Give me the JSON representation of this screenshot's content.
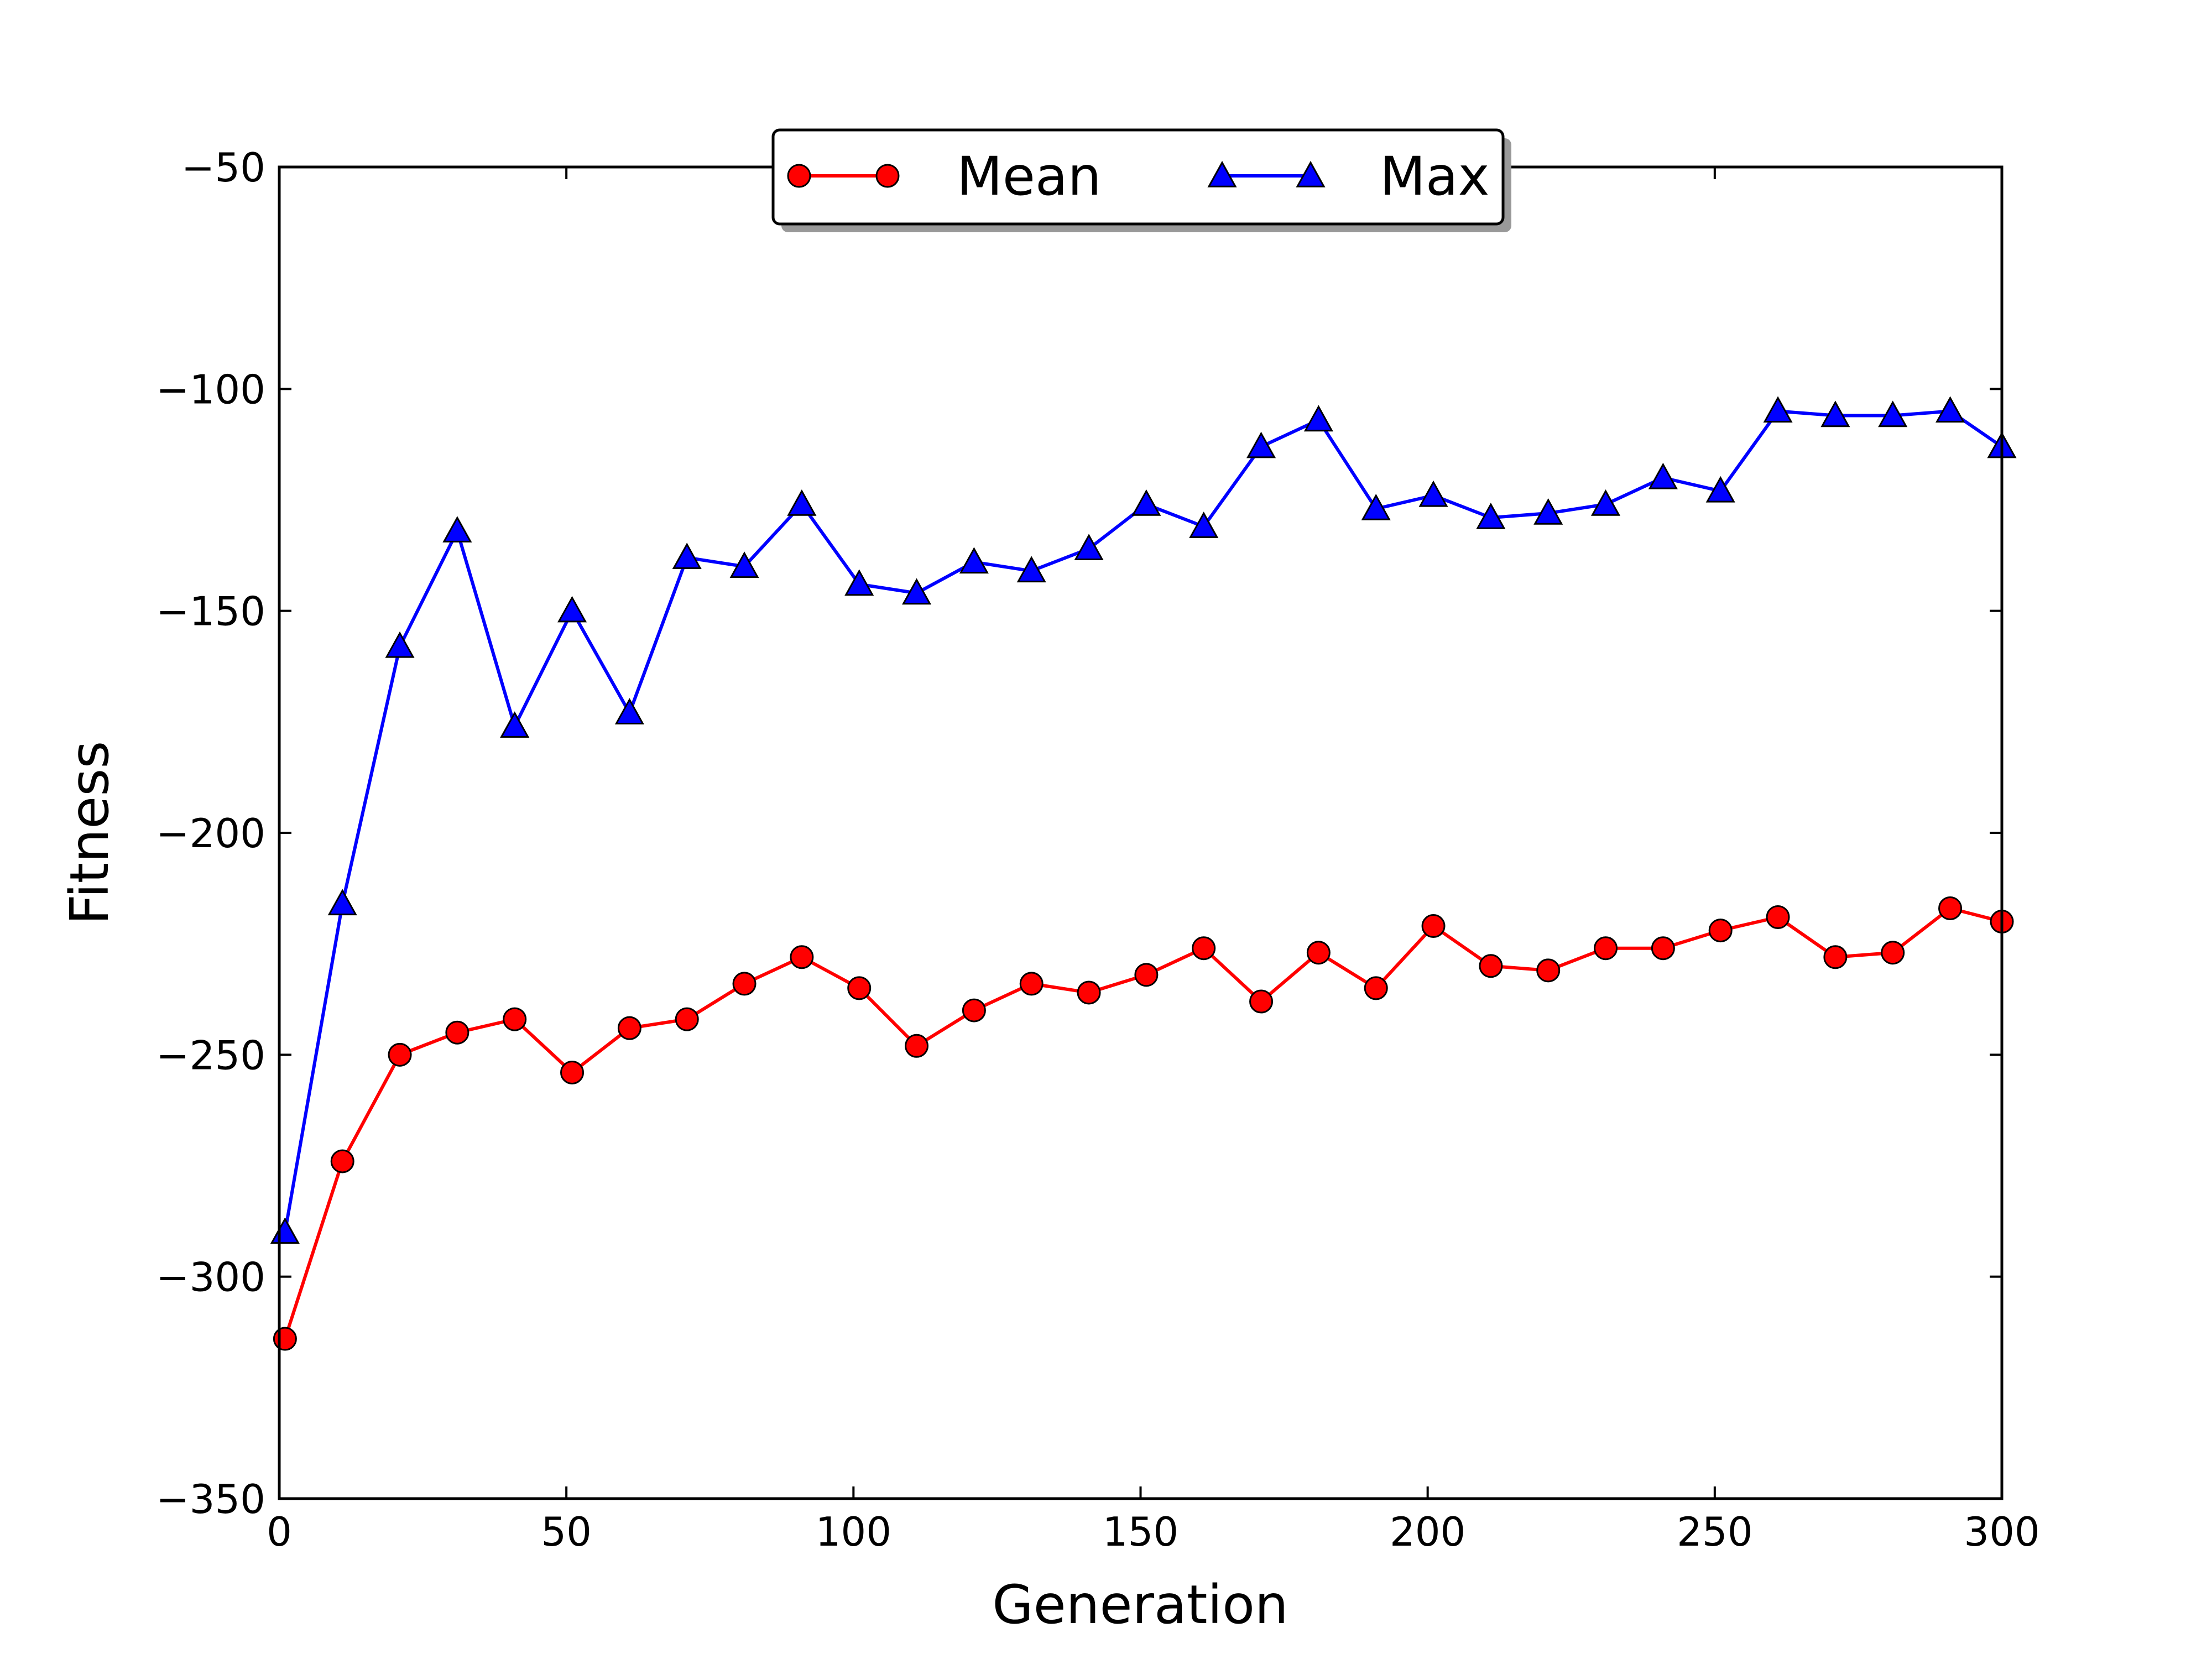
{
  "chart_data": {
    "type": "line",
    "xlabel": "Generation",
    "ylabel": "Fitness",
    "xlim": [
      0,
      300
    ],
    "ylim": [
      -350,
      -50
    ],
    "xticks": [
      0,
      50,
      100,
      150,
      200,
      250,
      300
    ],
    "xtick_labels": [
      "0",
      "50",
      "100",
      "150",
      "200",
      "250",
      "300"
    ],
    "yticks": [
      -350,
      -300,
      -250,
      -200,
      -150,
      -100,
      -50
    ],
    "ytick_labels": [
      "−350",
      "−300",
      "−250",
      "−200",
      "−150",
      "−100",
      "−50"
    ],
    "grid": false,
    "legend": {
      "placement": "top-center",
      "columns": 2
    },
    "x": [
      1,
      11,
      21,
      31,
      41,
      51,
      61,
      71,
      81,
      91,
      101,
      111,
      121,
      131,
      141,
      151,
      161,
      171,
      181,
      191,
      201,
      211,
      221,
      231,
      241,
      251,
      261,
      271,
      281,
      291,
      300
    ],
    "series": [
      {
        "name": "Mean",
        "color": "#ff0000",
        "marker": "circle",
        "values": [
          -314,
          -274,
          -250,
          -245,
          -242,
          -254,
          -244,
          -242,
          -234,
          -228,
          -235,
          -248,
          -240,
          -234,
          -236,
          -232,
          -226,
          -238,
          -227,
          -235,
          -221,
          -230,
          -231,
          -226,
          -226,
          -222,
          -219,
          -228,
          -227,
          -217,
          -220
        ]
      },
      {
        "name": "Max",
        "color": "#0000ff",
        "marker": "triangle",
        "values": [
          -290,
          -216,
          -158,
          -132,
          -176,
          -150,
          -173,
          -138,
          -140,
          -126,
          -144,
          -146,
          -139,
          -141,
          -136,
          -126,
          -131,
          -113,
          -107,
          -127,
          -124,
          -129,
          -128,
          -126,
          -120,
          -123,
          -105,
          -106,
          -106,
          -105,
          -113
        ]
      }
    ]
  }
}
